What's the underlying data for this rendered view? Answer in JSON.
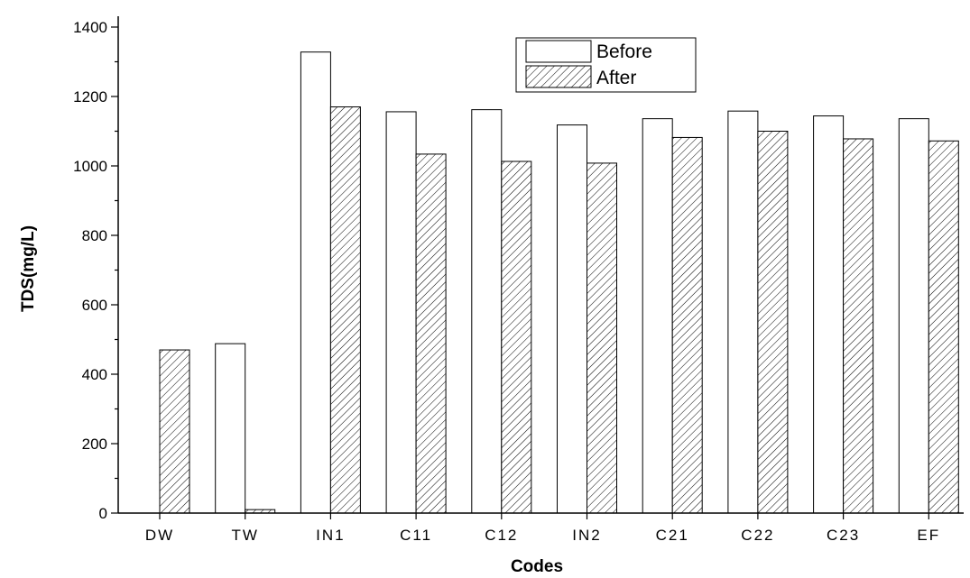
{
  "chart_data": {
    "type": "bar",
    "title": "",
    "xlabel": "Codes",
    "ylabel": "TDS(mg/L)",
    "categories": [
      "DW",
      "TW",
      "IN1",
      "C11",
      "C12",
      "IN2",
      "C21",
      "C22",
      "C23",
      "EF"
    ],
    "series": [
      {
        "name": "Before",
        "pattern": "none",
        "values": [
          0,
          488,
          1328,
          1156,
          1162,
          1118,
          1136,
          1158,
          1144,
          1136
        ]
      },
      {
        "name": "After",
        "pattern": "hatch",
        "values": [
          470,
          10,
          1170,
          1034,
          1013,
          1008,
          1082,
          1100,
          1078,
          1072
        ]
      }
    ],
    "ylim": [
      0,
      1400
    ],
    "yticks": [
      0,
      200,
      400,
      600,
      800,
      1000,
      1200,
      1400
    ],
    "grid": false,
    "legend_position": "top-center"
  }
}
